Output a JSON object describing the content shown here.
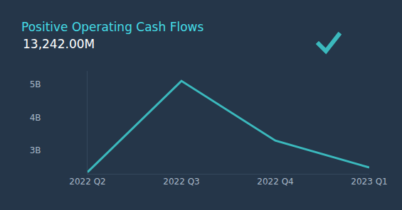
{
  "chart_data": {
    "type": "line",
    "title": "Positive Operating Cash Flows",
    "subtitle": "13,242.00M",
    "categories": [
      "2022 Q2",
      "2022 Q3",
      "2022 Q4",
      "2023 Q1"
    ],
    "values": [
      2.35,
      5.1,
      3.3,
      2.49
    ],
    "color": "#3bb9bd",
    "ylim": [
      2.3,
      5.4
    ],
    "yticks": [
      {
        "value": 3,
        "label": "3B"
      },
      {
        "value": 4,
        "label": "4B"
      },
      {
        "value": 5,
        "label": "5B"
      }
    ],
    "grid": false
  }
}
